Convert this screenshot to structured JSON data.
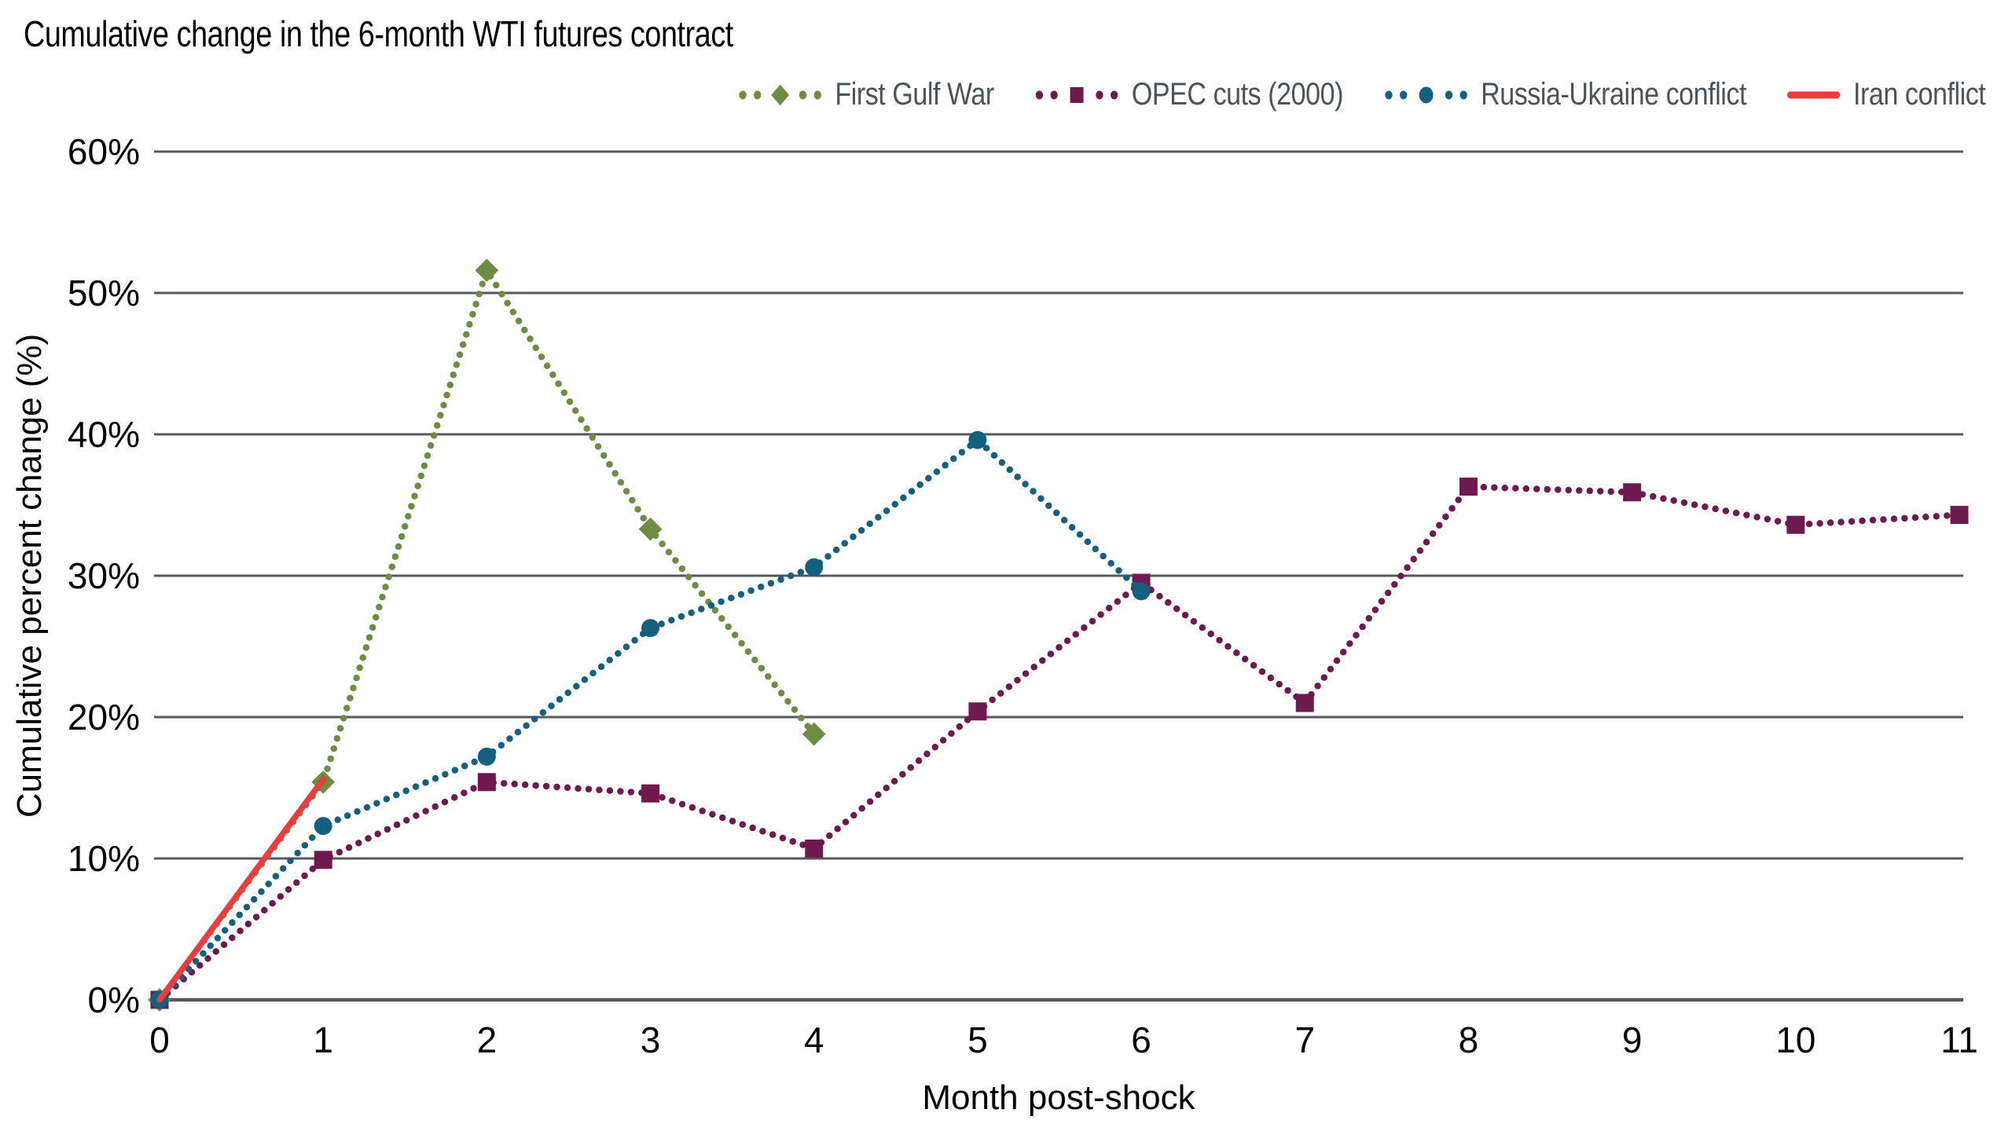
{
  "chart_data": {
    "type": "line",
    "title": "Cumulative change in the 6-month WTI futures contract",
    "xlabel": "Month post-shock",
    "ylabel": "Cumulative percent change (%)",
    "xlim": [
      0,
      11
    ],
    "ylim": [
      0,
      60
    ],
    "grid": "horizontal",
    "legend_position": "top-right",
    "y_ticks": [
      {
        "value": 0,
        "label": "0%"
      },
      {
        "value": 10,
        "label": "10%"
      },
      {
        "value": 20,
        "label": "20%"
      },
      {
        "value": 30,
        "label": "30%"
      },
      {
        "value": 40,
        "label": "40%"
      },
      {
        "value": 50,
        "label": "50%"
      },
      {
        "value": 60,
        "label": "60%"
      }
    ],
    "x_ticks": [
      {
        "value": 0,
        "label": "0"
      },
      {
        "value": 1,
        "label": "1"
      },
      {
        "value": 2,
        "label": "2"
      },
      {
        "value": 3,
        "label": "3"
      },
      {
        "value": 4,
        "label": "4"
      },
      {
        "value": 5,
        "label": "5"
      },
      {
        "value": 6,
        "label": "6"
      },
      {
        "value": 7,
        "label": "7"
      },
      {
        "value": 8,
        "label": "8"
      },
      {
        "value": 9,
        "label": "9"
      },
      {
        "value": 10,
        "label": "10"
      },
      {
        "value": 11,
        "label": "11"
      }
    ],
    "series": [
      {
        "name": "First Gulf War",
        "color": "#6e8c43",
        "line_style": "dotted",
        "marker": "diamond",
        "x": [
          0,
          1,
          2,
          3,
          4
        ],
        "values": [
          0,
          15.4,
          51.6,
          33.3,
          18.8
        ]
      },
      {
        "name": "OPEC cuts (2000)",
        "color": "#6f1a4f",
        "line_style": "dotted",
        "marker": "square",
        "x": [
          0,
          1,
          2,
          3,
          4,
          5,
          6,
          7,
          8,
          9,
          10,
          11
        ],
        "values": [
          0,
          9.9,
          15.4,
          14.6,
          10.7,
          20.4,
          29.5,
          21.0,
          36.3,
          35.9,
          33.6,
          34.3
        ]
      },
      {
        "name": "Russia-Ukraine conflict",
        "color": "#15607f",
        "line_style": "dotted",
        "marker": "circle",
        "x": [
          0,
          1,
          2,
          3,
          4,
          5,
          6
        ],
        "values": [
          0,
          12.3,
          17.2,
          26.3,
          30.6,
          39.6,
          28.9
        ]
      },
      {
        "name": "Iran conflict",
        "color": "#ee3b3d",
        "line_style": "solid",
        "marker": "none",
        "x": [
          0,
          1
        ],
        "values": [
          0,
          15.6
        ]
      }
    ]
  },
  "colors": {
    "grid": "#54585c",
    "axis_line": "#54585c",
    "title_text": "#000000",
    "tick_text": "#000000",
    "legend_text": "#49535c",
    "background": "#ffffff"
  }
}
